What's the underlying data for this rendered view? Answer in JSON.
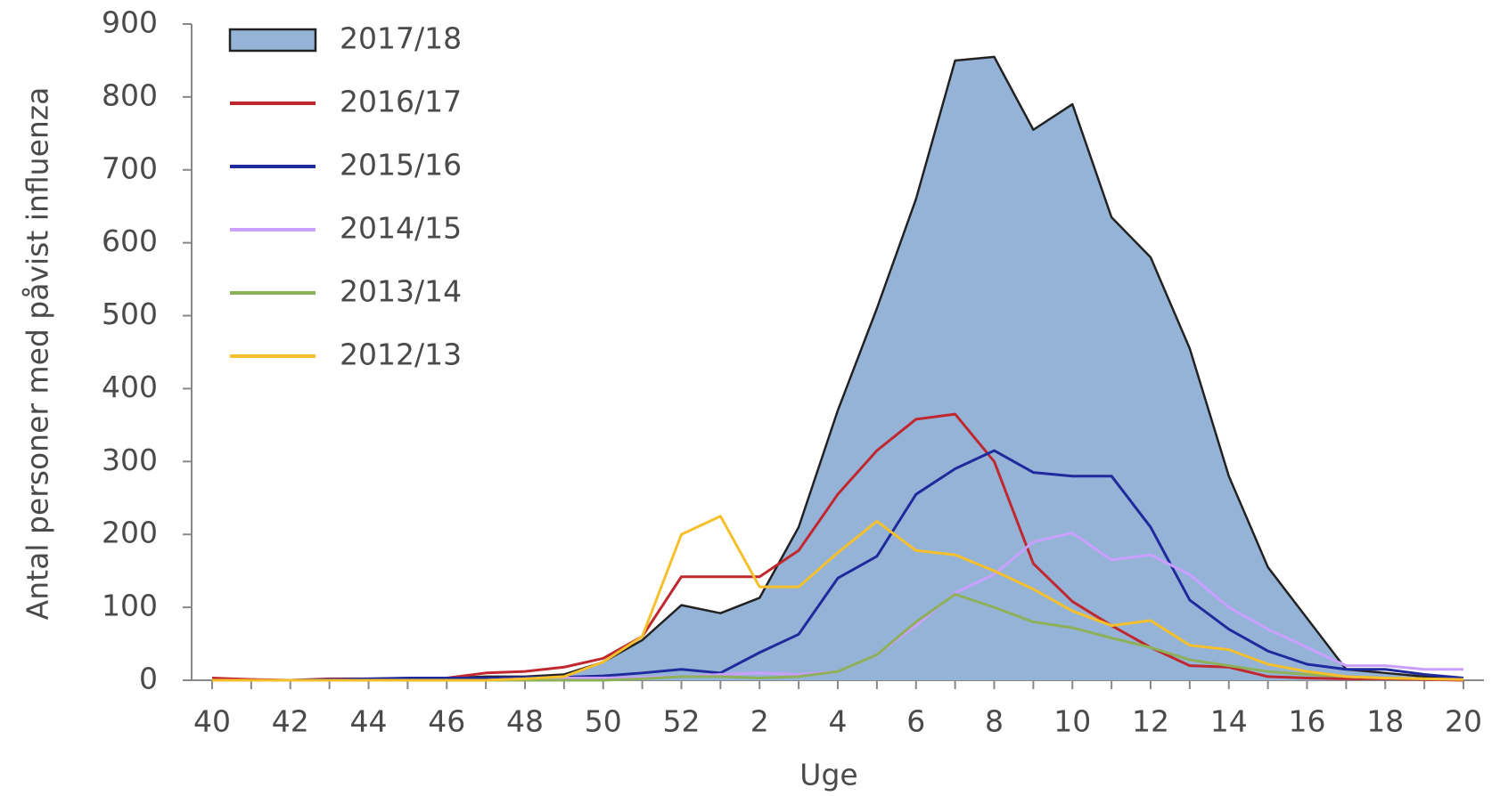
{
  "chart_data": {
    "type": "line",
    "x_label": "Uge",
    "y_label": "Antal personer med påvist influenza",
    "categories": [
      "40",
      null,
      "42",
      null,
      "44",
      null,
      "46",
      null,
      "48",
      null,
      "50",
      null,
      "52",
      null,
      "2",
      null,
      "4",
      null,
      "6",
      null,
      "8",
      null,
      "10",
      null,
      "12",
      null,
      "14",
      null,
      "16",
      null,
      "18",
      null,
      "20"
    ],
    "ylim": [
      0,
      900
    ],
    "yticks": [
      0,
      100,
      200,
      300,
      400,
      500,
      600,
      700,
      800,
      900
    ],
    "legend": "top-left",
    "series": [
      {
        "name": "2017/18",
        "style": "area",
        "color": "#95b3d7",
        "values": [
          2,
          1,
          0,
          1,
          2,
          3,
          3,
          5,
          5,
          8,
          25,
          55,
          103,
          92,
          113,
          210,
          370,
          510,
          660,
          850,
          855,
          755,
          790,
          635,
          580,
          455,
          280,
          155,
          85,
          15,
          10,
          5,
          3
        ]
      },
      {
        "name": "2016/17",
        "color": "#c0282f",
        "values": [
          3,
          1,
          0,
          2,
          2,
          2,
          3,
          10,
          12,
          18,
          30,
          60,
          142,
          142,
          142,
          178,
          255,
          315,
          358,
          365,
          300,
          160,
          108,
          75,
          45,
          20,
          18,
          5,
          3,
          2,
          2,
          1,
          0
        ]
      },
      {
        "name": "2015/16",
        "color": "#1f2a9c",
        "values": [
          0,
          0,
          0,
          1,
          2,
          3,
          3,
          3,
          4,
          4,
          6,
          10,
          15,
          10,
          38,
          63,
          140,
          170,
          255,
          290,
          315,
          285,
          280,
          280,
          210,
          110,
          70,
          40,
          22,
          15,
          15,
          8,
          3
        ]
      },
      {
        "name": "2014/15",
        "color": "#c9a0ff",
        "values": [
          0,
          0,
          0,
          0,
          0,
          0,
          0,
          0,
          2,
          3,
          3,
          4,
          5,
          8,
          10,
          8,
          12,
          35,
          75,
          120,
          145,
          190,
          202,
          165,
          172,
          145,
          100,
          70,
          45,
          20,
          20,
          15,
          15
        ]
      },
      {
        "name": "2013/14",
        "color": "#8db05a",
        "values": [
          0,
          0,
          0,
          0,
          0,
          0,
          0,
          0,
          0,
          0,
          0,
          2,
          5,
          5,
          3,
          5,
          12,
          35,
          80,
          118,
          100,
          80,
          72,
          58,
          45,
          28,
          20,
          12,
          8,
          5,
          3,
          2,
          1
        ]
      },
      {
        "name": "2012/13",
        "color": "#f5c02b",
        "values": [
          0,
          0,
          0,
          0,
          0,
          0,
          0,
          0,
          2,
          5,
          25,
          60,
          200,
          225,
          128,
          128,
          175,
          218,
          178,
          172,
          150,
          125,
          95,
          75,
          82,
          48,
          42,
          22,
          12,
          5,
          3,
          2,
          1
        ]
      }
    ]
  }
}
